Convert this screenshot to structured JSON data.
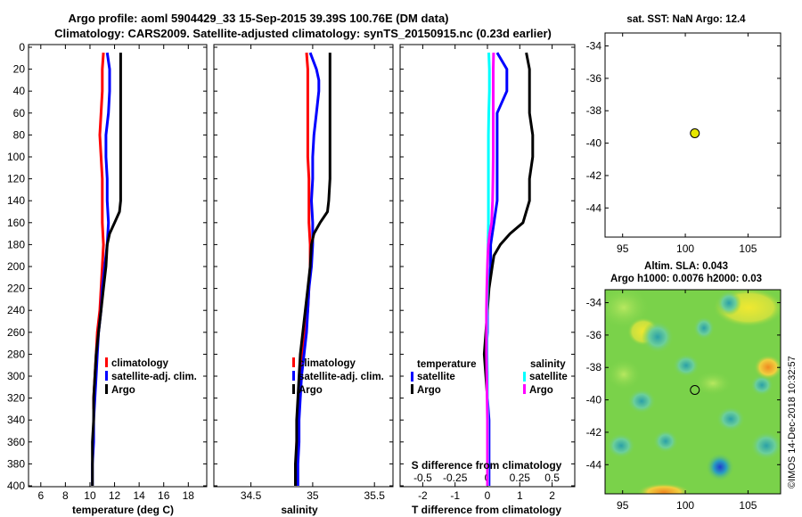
{
  "title_line1": "Argo profile: aoml 5904429_33 15-Sep-2015 39.39S 100.76E (DM data)",
  "title_line2": "Climatology: CARS2009. Satellite-adjusted climatology: synTS_20150915.nc (0.23d earlier)",
  "watermark": "©IMOS 14-Dec-2018 10:32:57",
  "colors": {
    "climatology": "#ff0000",
    "satellite": "#0000ff",
    "argo": "#000000",
    "sat_salt": "#00ffff",
    "argo_salt": "#ff00ff",
    "marker": "#e6e600"
  },
  "chart_data": [
    {
      "type": "line",
      "name": "temperature",
      "xlabel": "temperature (deg C)",
      "x_ticks": [
        "6",
        "8",
        "10",
        "12",
        "14",
        "16",
        "18"
      ],
      "x_tick_values": [
        6,
        8,
        10,
        12,
        14,
        16,
        18
      ],
      "xlim": [
        5,
        19.5
      ],
      "y_ticks": [
        "0",
        "20",
        "40",
        "60",
        "80",
        "100",
        "120",
        "140",
        "160",
        "180",
        "200",
        "220",
        "240",
        "260",
        "280",
        "300",
        "320",
        "340",
        "360",
        "380",
        "400"
      ],
      "ylim": [
        0,
        400
      ],
      "legend": [
        "climatology",
        "satellite-adj. clim.",
        "Argo"
      ],
      "series": [
        {
          "name": "climatology",
          "color": "#ff0000",
          "depth": [
            5,
            20,
            40,
            60,
            80,
            100,
            120,
            140,
            160,
            180,
            200,
            220,
            240,
            260,
            280,
            300,
            320,
            330
          ],
          "values": [
            11.1,
            11.0,
            11.0,
            10.9,
            10.8,
            10.9,
            11.0,
            11.0,
            11.0,
            11.1,
            11.0,
            10.9,
            10.8,
            10.6,
            10.5,
            10.4,
            10.3,
            10.3
          ]
        },
        {
          "name": "satellite-adj. clim.",
          "color": "#0000ff",
          "depth": [
            5,
            20,
            40,
            60,
            80,
            100,
            120,
            140,
            160,
            180,
            200,
            220,
            240,
            260,
            280,
            300,
            320,
            340,
            360,
            380,
            400
          ],
          "values": [
            11.4,
            11.6,
            11.6,
            11.5,
            11.3,
            11.3,
            11.4,
            11.4,
            11.5,
            11.4,
            11.2,
            11.0,
            10.9,
            10.7,
            10.6,
            10.5,
            10.4,
            10.3,
            10.3,
            10.2,
            10.2
          ]
        },
        {
          "name": "Argo",
          "color": "#000000",
          "depth": [
            5,
            20,
            40,
            60,
            80,
            100,
            120,
            140,
            150,
            160,
            170,
            180,
            200,
            220,
            240,
            260,
            280,
            300,
            320,
            340,
            360,
            380,
            400
          ],
          "values": [
            12.5,
            12.5,
            12.5,
            12.5,
            12.5,
            12.5,
            12.5,
            12.5,
            12.4,
            12.0,
            11.6,
            11.4,
            11.3,
            11.1,
            10.9,
            10.7,
            10.5,
            10.4,
            10.3,
            10.3,
            10.2,
            10.2,
            10.2
          ]
        }
      ]
    },
    {
      "type": "line",
      "name": "salinity",
      "xlabel": "salinity",
      "x_ticks": [
        "34.5",
        "35",
        "35.5"
      ],
      "x_tick_values": [
        34.5,
        35,
        35.5
      ],
      "xlim": [
        34.2,
        35.65
      ],
      "y_ticks": [],
      "ylim": [
        0,
        400
      ],
      "legend": [
        "climatology",
        "satellite-adj. clim.",
        "Argo"
      ],
      "series": [
        {
          "name": "climatology",
          "color": "#ff0000",
          "depth": [
            5,
            20,
            40,
            60,
            80,
            100,
            120,
            140,
            160,
            180,
            200,
            220,
            240,
            260,
            280,
            300,
            320,
            340,
            360,
            380,
            400
          ],
          "values": [
            34.95,
            34.96,
            34.96,
            34.96,
            34.96,
            34.96,
            34.97,
            34.97,
            34.97,
            34.98,
            34.98,
            34.97,
            34.96,
            34.94,
            34.92,
            34.9,
            34.89,
            34.88,
            34.87,
            34.87,
            34.86
          ]
        },
        {
          "name": "satellite-adj. clim.",
          "color": "#0000ff",
          "depth": [
            5,
            20,
            30,
            40,
            60,
            80,
            100,
            120,
            140,
            160,
            180,
            200,
            220,
            240,
            260,
            280,
            300,
            320,
            340,
            360,
            380,
            400
          ],
          "values": [
            34.98,
            35.03,
            35.05,
            35.05,
            35.03,
            35.01,
            35.0,
            35.0,
            34.99,
            35.0,
            35.0,
            34.99,
            34.97,
            34.96,
            34.95,
            34.93,
            34.91,
            34.9,
            34.89,
            34.89,
            34.88,
            34.88
          ]
        },
        {
          "name": "Argo",
          "color": "#000000",
          "depth": [
            5,
            20,
            40,
            60,
            80,
            100,
            120,
            140,
            150,
            160,
            170,
            180,
            200,
            220,
            240,
            260,
            280,
            300,
            320,
            340,
            360,
            380,
            400
          ],
          "values": [
            35.14,
            35.14,
            35.14,
            35.14,
            35.14,
            35.14,
            35.14,
            35.13,
            35.12,
            35.06,
            35.01,
            34.99,
            34.98,
            34.96,
            34.94,
            34.92,
            34.9,
            34.89,
            34.88,
            34.87,
            34.87,
            34.86,
            34.86
          ]
        }
      ]
    },
    {
      "type": "line",
      "name": "difference",
      "xlabel": "T difference from climatology",
      "xlabel_top": "S difference from climatology",
      "x_ticks": [
        "-2",
        "-1",
        "0",
        "1",
        "2"
      ],
      "x_tick_values": [
        -2,
        -1,
        0,
        1,
        2
      ],
      "x_ticks_top": [
        "-0.5",
        "-0.25",
        "0",
        "0.25",
        "0.5"
      ],
      "xlim": [
        -2.7,
        2.7
      ],
      "y_ticks": [],
      "ylim": [
        0,
        400
      ],
      "legend_temperature_title": "temperature",
      "legend_salinity_title": "salinity",
      "legend_temperature": [
        "satellite",
        "Argo"
      ],
      "legend_salinity": [
        "satellite",
        "Argo"
      ],
      "series": [
        {
          "name": "temperature satellite",
          "color": "#0000ff",
          "depth": [
            5,
            20,
            30,
            40,
            60,
            80,
            100,
            120,
            140,
            160,
            180,
            200,
            220,
            240,
            260,
            280,
            300,
            320,
            340,
            360,
            380,
            400
          ],
          "values": [
            0.3,
            0.6,
            0.6,
            0.6,
            0.3,
            0.3,
            0.3,
            0.3,
            0.3,
            0.2,
            0.1,
            0.1,
            0.0,
            0.0,
            0.0,
            -0.05,
            0.0,
            0.0,
            0.05,
            0.05,
            0.05,
            0.05
          ]
        },
        {
          "name": "temperature Argo",
          "color": "#000000",
          "depth": [
            5,
            20,
            40,
            60,
            80,
            100,
            120,
            140,
            160,
            170,
            180,
            190,
            200,
            220,
            240,
            260,
            280,
            300,
            320,
            340,
            360,
            380,
            400
          ],
          "values": [
            1.2,
            1.3,
            1.3,
            1.3,
            1.4,
            1.4,
            1.3,
            1.3,
            1.1,
            0.7,
            0.4,
            0.2,
            0.15,
            0.05,
            0.0,
            -0.05,
            -0.1,
            -0.05,
            0.0,
            0.0,
            0.0,
            0.0,
            0.0
          ]
        },
        {
          "name": "salinity satellite",
          "color": "#00ffff",
          "depth": [
            5,
            20,
            40,
            60,
            80,
            100,
            120,
            140,
            160,
            180,
            200,
            220,
            240,
            260,
            280,
            300,
            320,
            340,
            360,
            380,
            400
          ],
          "values": [
            0.04,
            0.06,
            0.06,
            0.04,
            0.03,
            0.03,
            0.03,
            0.03,
            0.03,
            0.02,
            0.01,
            0.0,
            -0.01,
            -0.01,
            -0.01,
            0.0,
            0.0,
            0.01,
            0.01,
            0.01,
            0.01
          ]
        },
        {
          "name": "salinity Argo",
          "color": "#ff00ff",
          "depth": [
            5,
            20,
            40,
            60,
            80,
            100,
            120,
            140,
            160,
            170,
            180,
            190,
            200,
            220,
            240,
            260,
            280,
            300,
            320,
            340,
            360,
            380,
            400
          ],
          "values": [
            0.19,
            0.18,
            0.18,
            0.18,
            0.18,
            0.18,
            0.17,
            0.16,
            0.13,
            0.07,
            0.03,
            0.01,
            0.0,
            -0.02,
            -0.03,
            -0.03,
            -0.03,
            -0.02,
            -0.01,
            0.0,
            0.0,
            0.0,
            0.0
          ]
        }
      ]
    },
    {
      "type": "scatter",
      "name": "sst_map",
      "title": "sat. SST: NaN Argo: 12.4",
      "x_ticks": [
        "95",
        "100",
        "105"
      ],
      "x_tick_values": [
        95,
        100,
        105
      ],
      "xlim": [
        93.6,
        107.6
      ],
      "y_ticks": [
        "-34",
        "-36",
        "-38",
        "-40",
        "-42",
        "-44"
      ],
      "y_tick_values": [
        -34,
        -36,
        -38,
        -40,
        -42,
        -44
      ],
      "ylim": [
        -45.8,
        -33.2
      ],
      "points": [
        {
          "lon": 100.76,
          "lat": -39.39
        }
      ]
    },
    {
      "type": "heatmap",
      "name": "sla_map",
      "title_line1": "Altim. SLA: 0.043",
      "title_line2": "Argo h1000: 0.0076 h2000: 0.03",
      "x_ticks": [
        "95",
        "100",
        "105"
      ],
      "x_tick_values": [
        95,
        100,
        105
      ],
      "xlim": [
        93.6,
        107.6
      ],
      "y_ticks": [
        "-34",
        "-36",
        "-38",
        "-40",
        "-42",
        "-44"
      ],
      "y_tick_values": [
        -34,
        -36,
        -38,
        -40,
        -42,
        -44
      ],
      "ylim": [
        -45.8,
        -33.2
      ],
      "points": [
        {
          "lon": 100.76,
          "lat": -39.39
        }
      ]
    }
  ]
}
